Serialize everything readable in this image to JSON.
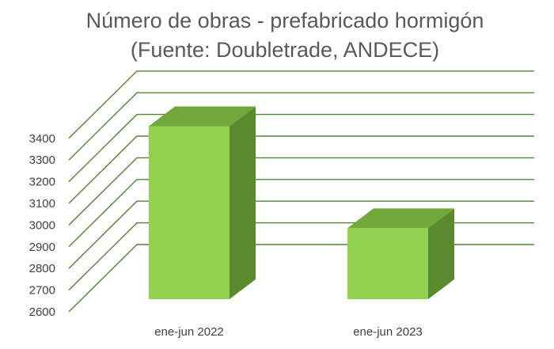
{
  "chart_data": {
    "type": "bar",
    "title": "Número de obras - prefabricado hormigón",
    "subtitle": "(Fuente: Doubletrade, ANDECE)",
    "categories": [
      "ene-jun 2022",
      "ene-jun 2023"
    ],
    "values": [
      3390,
      2920
    ],
    "ylim": [
      2600,
      3400
    ],
    "yticks": [
      2600,
      2700,
      2800,
      2900,
      3000,
      3100,
      3200,
      3300,
      3400
    ],
    "grid": true,
    "legend": "none",
    "style": "3d-column"
  },
  "colors": {
    "bar_front": "#92d050",
    "bar_top": "#70a83a",
    "bar_side": "#5a8a2e",
    "gridline": "#548235",
    "title": "#595959",
    "tick_text": "#404040"
  }
}
